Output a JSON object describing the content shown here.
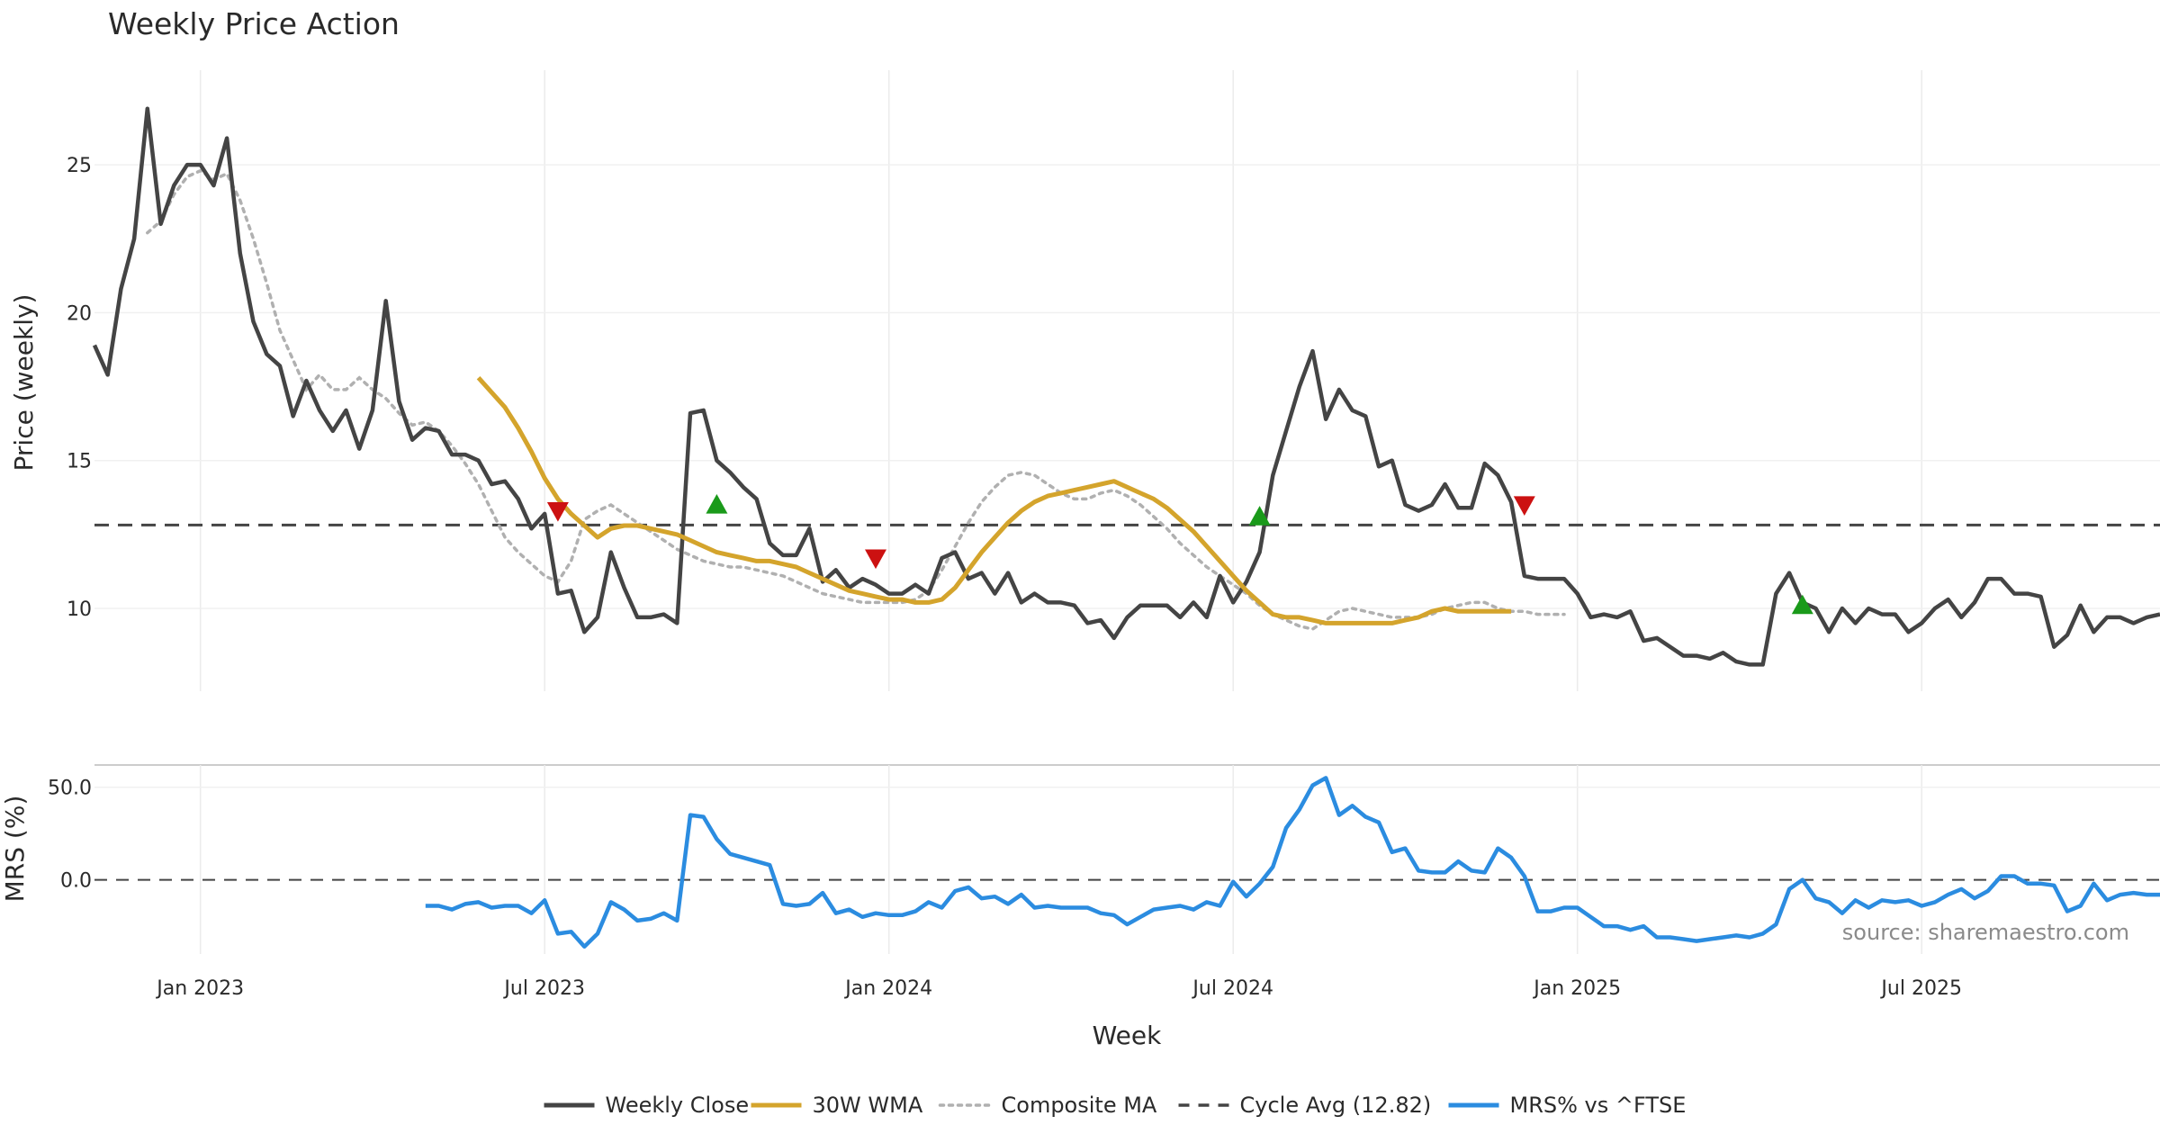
{
  "chart_data": {
    "type": "line",
    "title": "Weekly Price Action",
    "xlabel": "Week",
    "source": "source: sharemaestro.com",
    "x_ticks": [
      {
        "label": "Jan 2023",
        "week": 8
      },
      {
        "label": "Jul 2023",
        "week": 34
      },
      {
        "label": "Jan 2024",
        "week": 60
      },
      {
        "label": "Jul 2024",
        "week": 86
      },
      {
        "label": "Jan 2025",
        "week": 112
      },
      {
        "label": "Jul 2025",
        "week": 138
      }
    ],
    "x_range": [
      0,
      156
    ],
    "price_panel": {
      "ylabel": "Price (weekly)",
      "ylim": [
        7.2,
        28.2
      ],
      "yticks": [
        "10",
        "15",
        "20",
        "25"
      ],
      "cycle_avg": 12.82,
      "weekly_close": [
        18.9,
        17.9,
        20.8,
        22.5,
        26.9,
        23.0,
        24.3,
        25.0,
        25.0,
        24.3,
        25.9,
        22.0,
        19.7,
        18.6,
        18.2,
        16.5,
        17.7,
        16.7,
        16.0,
        16.7,
        15.4,
        16.7,
        20.4,
        17.0,
        15.7,
        16.1,
        16.0,
        15.2,
        15.2,
        15.0,
        14.2,
        14.3,
        13.7,
        12.7,
        13.2,
        10.5,
        10.6,
        9.2,
        9.7,
        11.9,
        10.7,
        9.7,
        9.7,
        9.8,
        9.5,
        16.6,
        16.7,
        15.0,
        14.6,
        14.1,
        13.7,
        12.2,
        11.8,
        11.8,
        12.7,
        10.9,
        11.3,
        10.7,
        11.0,
        10.8,
        10.5,
        10.5,
        10.8,
        10.5,
        11.7,
        11.9,
        11.0,
        11.2,
        10.5,
        11.2,
        10.2,
        10.5,
        10.2,
        10.2,
        10.1,
        9.5,
        9.6,
        9.0,
        9.7,
        10.1,
        10.1,
        10.1,
        9.7,
        10.2,
        9.7,
        11.1,
        10.2,
        10.9,
        11.9,
        14.5,
        16.0,
        17.5,
        18.7,
        16.4,
        17.4,
        16.7,
        16.5,
        14.8,
        15.0,
        13.5,
        13.3,
        13.5,
        14.2,
        13.4,
        13.4,
        14.9,
        14.5,
        13.6,
        11.1,
        11.0,
        11.0,
        11.0,
        10.5,
        9.7,
        9.8,
        9.7,
        9.9,
        8.9,
        9.0,
        8.7,
        8.4,
        8.4,
        8.3,
        8.5,
        8.2,
        8.1,
        8.1,
        10.5,
        11.2,
        10.2,
        10.0,
        9.2,
        10.0,
        9.5,
        10.0,
        9.8,
        9.8,
        9.2,
        9.5,
        10.0,
        10.3,
        9.7,
        10.2,
        11.0,
        11.0,
        10.5,
        10.5,
        10.4,
        8.7,
        9.1,
        10.1,
        9.2,
        9.7,
        9.7,
        9.5,
        9.7,
        9.8
      ],
      "wma_30w": {
        "start_week": 29,
        "values": [
          17.8,
          17.3,
          16.8,
          16.1,
          15.3,
          14.4,
          13.7,
          13.2,
          12.8,
          12.4,
          12.7,
          12.8,
          12.8,
          12.7,
          12.6,
          12.5,
          12.3,
          12.1,
          11.9,
          11.8,
          11.7,
          11.6,
          11.6,
          11.5,
          11.4,
          11.2,
          11.0,
          10.8,
          10.6,
          10.5,
          10.4,
          10.3,
          10.3,
          10.2,
          10.2,
          10.3,
          10.7,
          11.3,
          11.9,
          12.4,
          12.9,
          13.3,
          13.6,
          13.8,
          13.9,
          14.0,
          14.1,
          14.2,
          14.3,
          14.1,
          13.9,
          13.7,
          13.4,
          13.0,
          12.6,
          12.1,
          11.6,
          11.1,
          10.6,
          10.2,
          9.8,
          9.7,
          9.7,
          9.6,
          9.5,
          9.5,
          9.5,
          9.5,
          9.5,
          9.5,
          9.6,
          9.7,
          9.9,
          10.0,
          9.9,
          9.9,
          9.9,
          9.9,
          9.9
        ]
      },
      "composite_ma": {
        "start_week": 4,
        "values": [
          22.7,
          23.1,
          24.0,
          24.6,
          24.8,
          24.5,
          24.7,
          23.8,
          22.5,
          21.0,
          19.4,
          18.4,
          17.4,
          17.9,
          17.4,
          17.4,
          17.8,
          17.4,
          17.1,
          16.6,
          16.2,
          16.3,
          16.0,
          15.5,
          14.9,
          14.2,
          13.3,
          12.4,
          11.9,
          11.5,
          11.1,
          10.9,
          11.6,
          13.0,
          13.3,
          13.5,
          13.2,
          12.9,
          12.6,
          12.3,
          12.0,
          11.8,
          11.6,
          11.5,
          11.4,
          11.4,
          11.3,
          11.2,
          11.1,
          10.9,
          10.7,
          10.5,
          10.4,
          10.3,
          10.2,
          10.2,
          10.2,
          10.2,
          10.3,
          10.6,
          11.3,
          12.1,
          12.9,
          13.6,
          14.1,
          14.5,
          14.6,
          14.5,
          14.2,
          13.9,
          13.7,
          13.7,
          13.9,
          14.0,
          13.8,
          13.5,
          13.1,
          12.7,
          12.2,
          11.8,
          11.4,
          11.1,
          10.8,
          10.5,
          10.1,
          9.8,
          9.6,
          9.4,
          9.3,
          9.6,
          9.9,
          10.0,
          9.9,
          9.8,
          9.7,
          9.7,
          9.7,
          9.8,
          10.0,
          10.1,
          10.2,
          10.2,
          10.0,
          9.9,
          9.9,
          9.8,
          9.8,
          9.8
        ]
      },
      "signals": [
        {
          "type": "sell",
          "week": 35,
          "price": 13.3
        },
        {
          "type": "buy",
          "week": 47,
          "price": 13.5
        },
        {
          "type": "sell",
          "week": 59,
          "price": 11.7
        },
        {
          "type": "buy",
          "week": 88,
          "price": 13.1
        },
        {
          "type": "sell",
          "week": 108,
          "price": 13.5
        },
        {
          "type": "buy",
          "week": 129,
          "price": 10.1
        }
      ]
    },
    "mrs_panel": {
      "ylabel": "MRS (%)",
      "ylim": [
        -40,
        62
      ],
      "yticks": [
        "50.0",
        "0.0"
      ],
      "series": {
        "name": "MRS% vs ^FTSE",
        "start_week": 25,
        "values": [
          -14,
          -14,
          -16,
          -13,
          -12,
          -15,
          -14,
          -14,
          -18,
          -11,
          -29,
          -28,
          -36,
          -29,
          -12,
          -16,
          -22,
          -21,
          -18,
          -22,
          35,
          34,
          22,
          14,
          12,
          10,
          8,
          -13,
          -14,
          -13,
          -7,
          -18,
          -16,
          -20,
          -18,
          -19,
          -19,
          -17,
          -12,
          -15,
          -6,
          -4,
          -10,
          -9,
          -13,
          -8,
          -15,
          -14,
          -15,
          -15,
          -15,
          -18,
          -19,
          -24,
          -20,
          -16,
          -15,
          -14,
          -16,
          -12,
          -14,
          -1,
          -9,
          -2,
          7,
          28,
          38,
          51,
          55,
          35,
          40,
          34,
          31,
          15,
          17,
          5,
          4,
          4,
          10,
          5,
          4,
          17,
          12,
          2,
          -17,
          -17,
          -15,
          -15,
          -20,
          -25,
          -25,
          -27,
          -25,
          -31,
          -31,
          -32,
          -33,
          -32,
          -31,
          -30,
          -31,
          -29,
          -24,
          -5,
          0,
          -10,
          -12,
          -18,
          -11,
          -15,
          -11,
          -12,
          -11,
          -14,
          -12,
          -8,
          -5,
          -10,
          -6,
          2,
          2,
          -2,
          -2,
          -3,
          -17,
          -14,
          -2,
          -11,
          -8,
          -7,
          -8,
          -8,
          -7
        ]
      }
    },
    "legend": [
      {
        "label": "Weekly Close",
        "color": "#444444",
        "style": "solid"
      },
      {
        "label": "30W WMA",
        "color": "#d4a42c",
        "style": "solid"
      },
      {
        "label": "Composite MA",
        "color": "#b0b0b0",
        "style": "dotted"
      },
      {
        "label": "Cycle Avg (12.82)",
        "color": "#444444",
        "style": "dashed"
      },
      {
        "label": "MRS% vs ^FTSE",
        "color": "#2b8ce0",
        "style": "solid"
      }
    ],
    "colors": {
      "close": "#444444",
      "wma": "#d4a42c",
      "composite": "#b0b0b0",
      "cycle": "#444444",
      "mrs": "#2b8ce0",
      "buy": "#1a9a1a",
      "sell": "#cc1111"
    }
  }
}
